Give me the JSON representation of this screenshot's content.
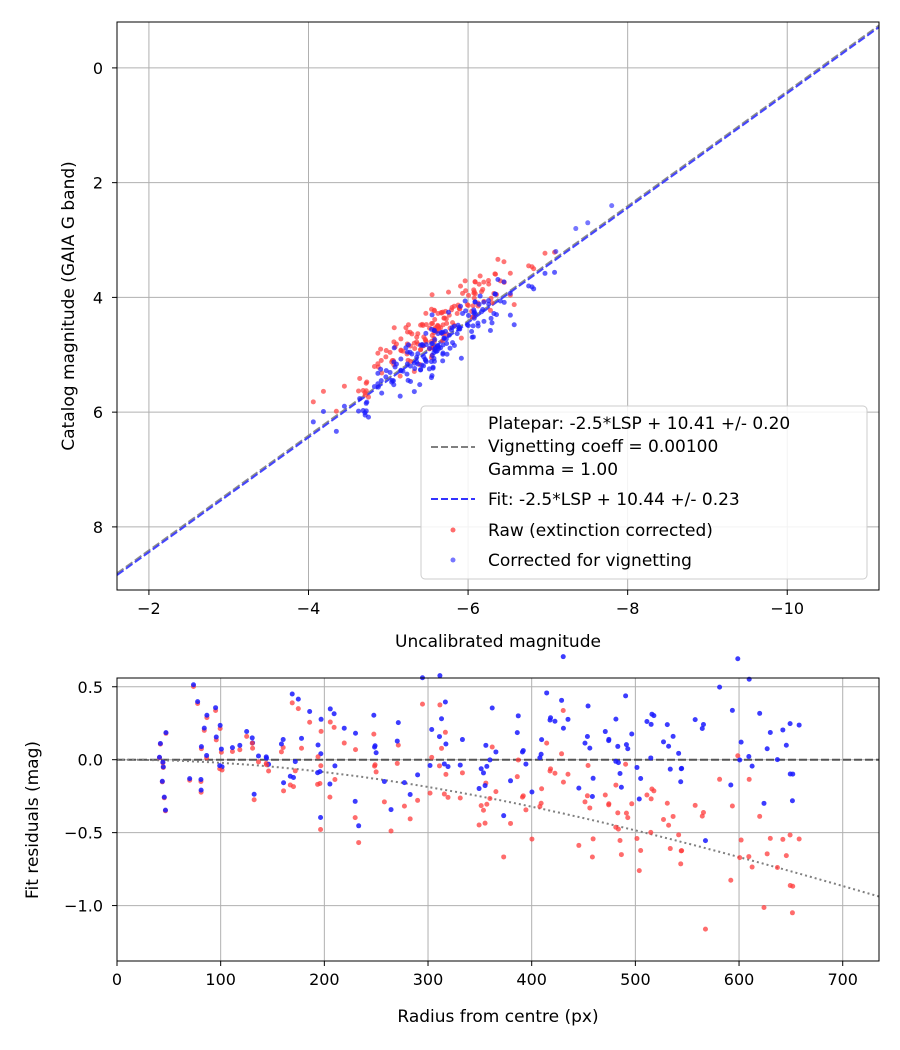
{
  "chart_data": [
    {
      "type": "scatter",
      "xlabel": "Uncalibrated magnitude",
      "ylabel": "Catalog magnitude (GAIA G band)",
      "xlim": [
        -1.6,
        -11.15
      ],
      "ylim": [
        9.1,
        -0.8
      ],
      "x_ticks": [
        -2,
        -4,
        -6,
        -8,
        -10
      ],
      "x_tick_labels": [
        "−2",
        "−4",
        "−6",
        "−8",
        "−10"
      ],
      "y_ticks": [
        0,
        2,
        4,
        6,
        8
      ],
      "y_tick_labels": [
        "0",
        "2",
        "4",
        "6",
        "8"
      ],
      "grid": true,
      "legend_position": "lower-right",
      "legend": {
        "platepar_line1": "Platepar: -2.5*LSP + 10.41 +/- 0.20",
        "platepar_line2": "Vignetting coeff = 0.00100",
        "platepar_line3": "Gamma = 1.00",
        "fit": "Fit: -2.5*LSP + 10.44 +/- 0.23",
        "raw": "Raw (extinction corrected)",
        "corrected": "Corrected for vignetting"
      },
      "series": [
        {
          "name": "Platepar",
          "kind": "line",
          "style": "dashed",
          "color": "#808080",
          "slope": 1,
          "intercept": 10.41
        },
        {
          "name": "Fit",
          "kind": "line",
          "style": "dashed",
          "color": "#3333ff",
          "slope": 1,
          "intercept": 10.44
        },
        {
          "name": "Raw (extinction corrected)",
          "kind": "scatter",
          "color": "#ff3b3b",
          "n_points": 170,
          "center_x": -5.6,
          "center_y": 4.75,
          "spread_x": 0.55,
          "offset_y": -0.35
        },
        {
          "name": "Corrected for vignetting",
          "kind": "scatter",
          "color": "#1a1aff",
          "n_points": 170,
          "center_x": -5.6,
          "center_y": 4.75,
          "spread_x": 0.55,
          "offset_y": 0.0,
          "extra_points": [
            [
              -7.8,
              2.4
            ],
            [
              -7.35,
              2.8
            ],
            [
              -7.5,
              2.7
            ],
            [
              -7.1,
              3.2
            ]
          ]
        }
      ]
    },
    {
      "type": "scatter",
      "xlabel": "Radius from centre (px)",
      "ylabel": "Fit residuals (mag)",
      "xlim": [
        0,
        735
      ],
      "ylim": [
        -1.38,
        0.56
      ],
      "x_ticks": [
        0,
        100,
        200,
        300,
        400,
        500,
        600,
        700
      ],
      "x_tick_labels": [
        "0",
        "100",
        "200",
        "300",
        "400",
        "500",
        "600",
        "700"
      ],
      "y_ticks": [
        0.5,
        0.0,
        -0.5,
        -1.0
      ],
      "y_tick_labels": [
        "0.5",
        "0.0",
        "−0.5",
        "−1.0"
      ],
      "grid": true,
      "series": [
        {
          "name": "Zero line",
          "kind": "line",
          "style": "dashed",
          "color": "#555555",
          "value": 0
        },
        {
          "name": "Vignetting model",
          "kind": "curve",
          "style": "dotted",
          "color": "#808080",
          "coeff": 0.001
        },
        {
          "name": "Raw residuals",
          "kind": "scatter",
          "color": "#ff3b3b",
          "n_points": 170
        },
        {
          "name": "Corrected residuals",
          "kind": "scatter",
          "color": "#1a1aff",
          "n_points": 170
        }
      ]
    }
  ]
}
